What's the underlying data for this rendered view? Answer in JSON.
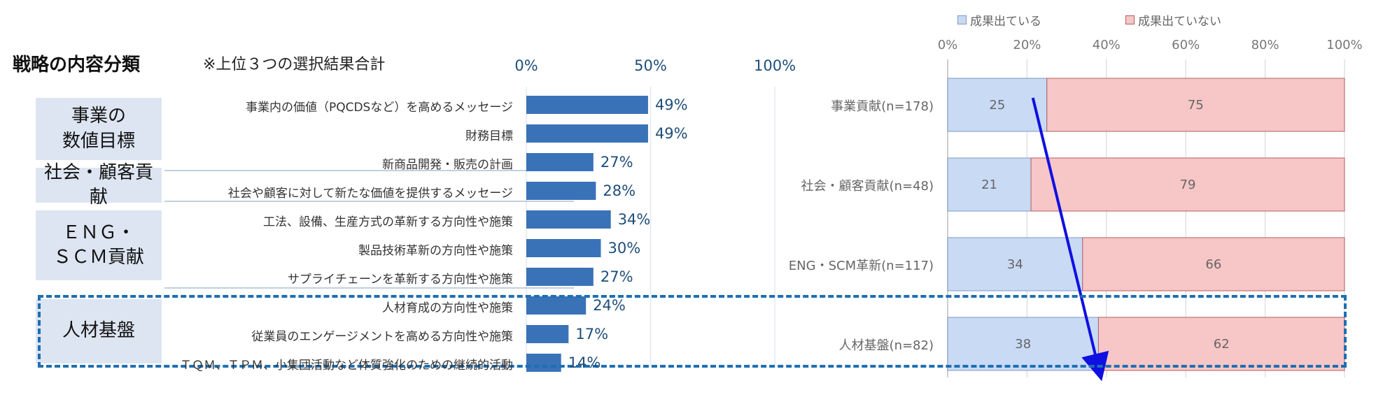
{
  "title": "戦略の内容分類",
  "note": "※上位３つの選択結果合計",
  "groups": [
    {
      "label": "事業の\n数値目標"
    },
    {
      "label": "社会・顧客貢献"
    },
    {
      "label": "ＥＮＧ・\nＳＣＭ貢献"
    },
    {
      "label": "人材基盤"
    }
  ],
  "colors": {
    "left_bar": "#3a72b8",
    "achieved": "#c9daf5",
    "not_achieved": "#f7c6c6",
    "arrow": "#1010e0",
    "dash": "#1f6fb2"
  },
  "chart_data": [
    {
      "type": "bar",
      "orientation": "horizontal",
      "categories": [
        "事業内の価値（PQCDSなど）を高めるメッセージ",
        "財務目標",
        "新商品開発・販売の計画",
        "社会や顧客に対して新たな価値を提供するメッセージ",
        "工法、設備、生産方式の革新する方向性や施策",
        "製品技術革新の方向性や施策",
        "サプライチェーンを革新する方向性や施策",
        "人材育成の方向性や施策",
        "従業員のエンゲージメントを高める方向性や施策",
        "ＴＱＭ、ＴＰＭ、小集団活動など体質強化のための継続的活動"
      ],
      "values": [
        49,
        49,
        27,
        28,
        34,
        30,
        27,
        24,
        17,
        14
      ],
      "value_labels": [
        "49%",
        "49%",
        "27%",
        "28%",
        "34%",
        "30%",
        "27%",
        "24%",
        "17%",
        "14%"
      ],
      "xlim": [
        0,
        100
      ],
      "x_ticks": [
        "0%",
        "50%",
        "100%"
      ]
    },
    {
      "type": "bar",
      "orientation": "horizontal",
      "stacked": true,
      "categories": [
        "事業貢献(n=178)",
        "社会・顧客貢献(n=48)",
        "ENG・SCM革新(n=117)",
        "人材基盤(n=82)"
      ],
      "series": [
        {
          "name": "成果出ている",
          "values": [
            25,
            21,
            34,
            38
          ]
        },
        {
          "name": "成果出ていない",
          "values": [
            75,
            79,
            66,
            62
          ]
        }
      ],
      "xlim": [
        0,
        100
      ],
      "x_ticks": [
        "0%",
        "20%",
        "40%",
        "60%",
        "80%",
        "100%"
      ],
      "legend_position": "top",
      "grid": true
    }
  ]
}
